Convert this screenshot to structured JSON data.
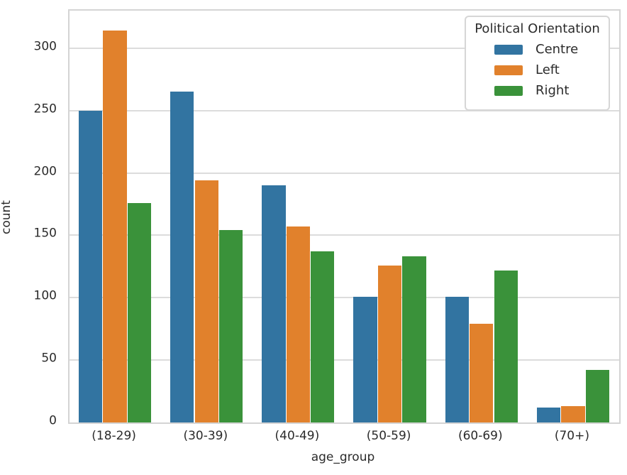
{
  "figure": {
    "background": "#ffffff"
  },
  "style": {
    "grid_color": "#dcdcdc",
    "spine_color": "#d4d4d4",
    "text_color": "#2b2b2b"
  },
  "chart_data": {
    "type": "bar",
    "title": "",
    "xlabel": "age_group",
    "ylabel": "count",
    "categories": [
      "(18-29)",
      "(30-39)",
      "(40-49)",
      "(50-59)",
      "(60-69)",
      "(70+)"
    ],
    "series": [
      {
        "name": "Centre",
        "color": "#3274a1",
        "values": [
          250,
          265,
          190,
          101,
          101,
          12
        ]
      },
      {
        "name": "Left",
        "color": "#e1812c",
        "values": [
          314,
          194,
          157,
          126,
          79,
          13
        ]
      },
      {
        "name": "Right",
        "color": "#3a923a",
        "values": [
          176,
          154,
          137,
          133,
          122,
          42
        ]
      }
    ],
    "ylim": [
      0,
      330
    ],
    "yticks": [
      0,
      50,
      100,
      150,
      200,
      250,
      300
    ],
    "grid": "horizontal",
    "group_width_fraction": 0.8,
    "legend": {
      "title": "Political Orientation",
      "position": "upper right"
    }
  }
}
